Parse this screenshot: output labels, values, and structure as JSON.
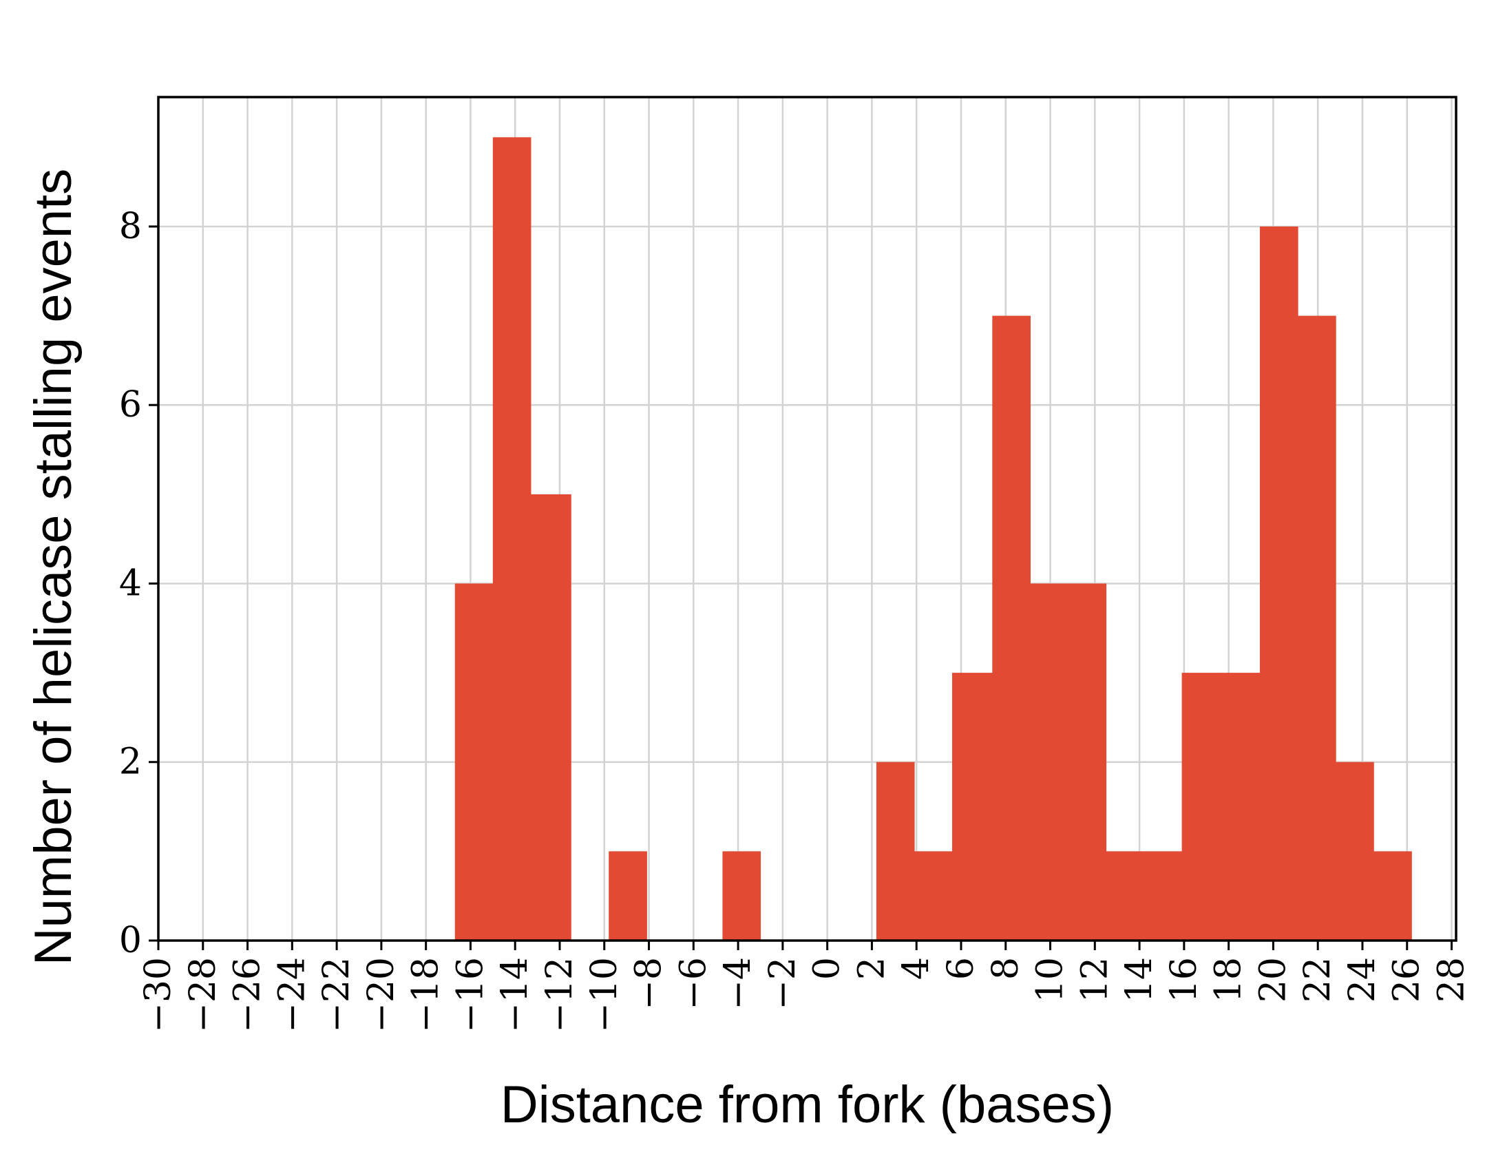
{
  "chart_data": {
    "type": "bar",
    "xlabel": "Distance from fork (bases)",
    "ylabel": "Number of helicase stalling events",
    "xlim": [
      -30,
      28.2
    ],
    "ylim": [
      0,
      9.45
    ],
    "bin_width": 1.7,
    "x_ticks": [
      -30,
      -28,
      -26,
      -24,
      -22,
      -20,
      -18,
      -16,
      -14,
      -12,
      -10,
      -8,
      -6,
      -4,
      -2,
      0,
      2,
      4,
      6,
      8,
      10,
      12,
      14,
      16,
      18,
      20,
      22,
      24,
      26,
      28
    ],
    "x_tick_labels": [
      "−30",
      "−28",
      "−26",
      "−24",
      "−22",
      "−20",
      "−18",
      "−16",
      "−14",
      "−12",
      "−10",
      "−8",
      "−6",
      "−4",
      "−2",
      "0",
      "2",
      "4",
      "6",
      "8",
      "10",
      "12",
      "14",
      "16",
      "18",
      "20",
      "22",
      "24",
      "26",
      "28"
    ],
    "y_ticks": [
      0,
      2,
      4,
      6,
      8
    ],
    "y_tick_labels": [
      "0",
      "2",
      "4",
      "6",
      "8"
    ],
    "grid": true,
    "bar_color": "#e24a33",
    "grid_color": "#d3d3d3",
    "bars": [
      {
        "x0": -16.7,
        "x1": -15.0,
        "value": 4
      },
      {
        "x0": -15.0,
        "x1": -13.3,
        "value": 9
      },
      {
        "x0": -13.3,
        "x1": -11.5,
        "value": 5
      },
      {
        "x0": -9.8,
        "x1": -8.1,
        "value": 1
      },
      {
        "x0": -4.7,
        "x1": -3.0,
        "value": 1
      },
      {
        "x0": 2.2,
        "x1": 3.9,
        "value": 2
      },
      {
        "x0": 3.9,
        "x1": 5.6,
        "value": 1
      },
      {
        "x0": 5.6,
        "x1": 7.4,
        "value": 3
      },
      {
        "x0": 7.4,
        "x1": 9.1,
        "value": 7
      },
      {
        "x0": 9.1,
        "x1": 10.8,
        "value": 4
      },
      {
        "x0": 10.8,
        "x1": 12.5,
        "value": 4
      },
      {
        "x0": 12.5,
        "x1": 14.2,
        "value": 1
      },
      {
        "x0": 14.2,
        "x1": 15.9,
        "value": 1
      },
      {
        "x0": 15.9,
        "x1": 17.6,
        "value": 3
      },
      {
        "x0": 17.6,
        "x1": 19.4,
        "value": 3
      },
      {
        "x0": 19.4,
        "x1": 21.1,
        "value": 8
      },
      {
        "x0": 21.1,
        "x1": 22.8,
        "value": 7
      },
      {
        "x0": 22.8,
        "x1": 24.5,
        "value": 2
      },
      {
        "x0": 24.5,
        "x1": 26.2,
        "value": 1
      }
    ]
  }
}
